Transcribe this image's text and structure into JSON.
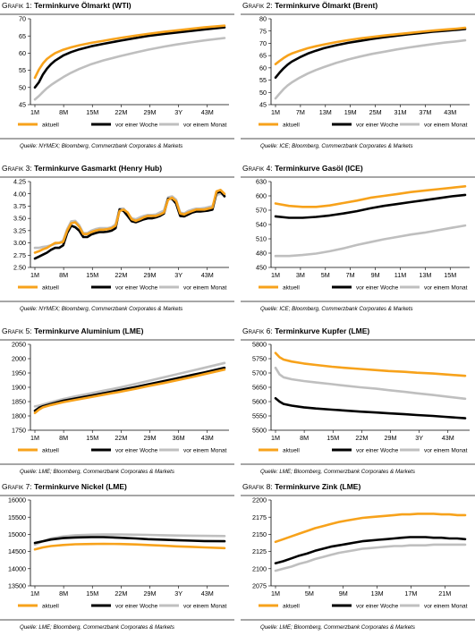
{
  "chart_data": [
    {
      "type": "line",
      "prefix": "Grafik 1:",
      "title": "Terminkurve Ölmarkt (WTI)",
      "ylim": [
        45,
        70
      ],
      "yticks": [
        45,
        50,
        55,
        60,
        65,
        70
      ],
      "xlabels": [
        "1M",
        "8M",
        "15M",
        "22M",
        "29M",
        "3Y",
        "43M"
      ],
      "source": "Quelle: NYMEX; Bloomberg, Commerzbank Corporates & Markets",
      "legend": [
        "aktuell",
        "vor einer Woche",
        "vor einem Monat"
      ],
      "x": [
        1,
        2,
        3,
        4,
        5,
        6,
        8,
        10,
        12,
        15,
        18,
        22,
        26,
        29,
        33,
        36,
        40,
        43,
        48
      ],
      "series": [
        {
          "name": "aktuell",
          "color": "#f7a21b",
          "values": [
            52.8,
            55.2,
            57.0,
            58.3,
            59.2,
            60.0,
            61.0,
            61.7,
            62.3,
            63.0,
            63.6,
            64.4,
            65.1,
            65.6,
            66.2,
            66.6,
            67.1,
            67.5,
            68.0
          ]
        },
        {
          "name": "vor einer Woche",
          "color": "#000000",
          "values": [
            50.0,
            51.5,
            53.8,
            55.5,
            56.8,
            57.8,
            59.3,
            60.3,
            61.1,
            62.0,
            62.7,
            63.6,
            64.4,
            65.0,
            65.6,
            66.0,
            66.5,
            66.9,
            67.5
          ]
        },
        {
          "name": "vor einem Monat",
          "color": "#bfbfbf",
          "values": [
            46.5,
            47.5,
            48.7,
            49.8,
            50.7,
            51.5,
            53.0,
            54.3,
            55.4,
            56.8,
            57.9,
            59.1,
            60.2,
            61.0,
            61.9,
            62.5,
            63.2,
            63.7,
            64.4
          ]
        }
      ]
    },
    {
      "type": "line",
      "prefix": "Grafik 2:",
      "title": "Terminkurve Ölmarkt (Brent)",
      "ylim": [
        45,
        80
      ],
      "yticks": [
        45,
        50,
        55,
        60,
        65,
        70,
        75,
        80
      ],
      "xlabels": [
        "1M",
        "7M",
        "13M",
        "19M",
        "25M",
        "31M",
        "37M",
        "43M"
      ],
      "source": "Quelle: ICE; Bloomberg, Commerzbank Corporates & Markets",
      "legend": [
        "aktuell",
        "vor einer Woche",
        "vor einem Monat"
      ],
      "x": [
        1,
        2,
        3,
        4,
        5,
        7,
        9,
        11,
        13,
        16,
        19,
        22,
        25,
        28,
        31,
        34,
        37,
        40,
        43,
        46,
        48
      ],
      "series": [
        {
          "name": "aktuell",
          "color": "#f7a21b",
          "values": [
            61.5,
            62.8,
            64.0,
            65.0,
            65.8,
            67.0,
            68.0,
            68.8,
            69.5,
            70.5,
            71.3,
            72.0,
            72.6,
            73.2,
            73.7,
            74.2,
            74.7,
            75.2,
            75.6,
            76.0,
            76.3
          ]
        },
        {
          "name": "vor einer Woche",
          "color": "#000000",
          "values": [
            56.0,
            58.0,
            59.8,
            61.3,
            62.5,
            64.3,
            65.8,
            67.0,
            68.0,
            69.2,
            70.2,
            71.0,
            71.8,
            72.5,
            73.1,
            73.7,
            74.2,
            74.7,
            75.1,
            75.5,
            75.8
          ]
        },
        {
          "name": "vor einem Monat",
          "color": "#bfbfbf",
          "values": [
            47.5,
            49.5,
            51.3,
            52.8,
            54.0,
            56.0,
            57.7,
            59.1,
            60.3,
            62.0,
            63.4,
            64.6,
            65.7,
            66.6,
            67.5,
            68.3,
            69.0,
            69.7,
            70.3,
            70.8,
            71.2
          ]
        }
      ]
    },
    {
      "type": "line",
      "prefix": "Grafik 3:",
      "title": "Terminkurve Gasmarkt (Henry Hub)",
      "ylim": [
        2.5,
        4.25
      ],
      "yticks": [
        2.5,
        2.75,
        3.0,
        3.25,
        3.5,
        3.75,
        4.0,
        4.25
      ],
      "xlabels": [
        "1M",
        "8M",
        "15M",
        "22M",
        "29M",
        "3Y",
        "43M"
      ],
      "source": "Quelle: NYMEX; Bloomberg, Commerzbank Corporates & Markets",
      "legend": [
        "aktuell",
        "vor einer Woche",
        "vor einem Monat"
      ],
      "x": [
        1,
        2,
        3,
        4,
        5,
        6,
        7,
        8,
        9,
        10,
        11,
        12,
        13,
        14,
        15,
        16,
        17,
        18,
        19,
        20,
        21,
        22,
        23,
        24,
        25,
        26,
        27,
        28,
        29,
        30,
        31,
        32,
        33,
        34,
        35,
        36,
        37,
        38,
        39,
        40,
        41,
        42,
        43,
        44,
        45,
        46,
        47,
        48
      ],
      "series": [
        {
          "name": "aktuell",
          "color": "#f7a21b",
          "values": [
            2.8,
            2.83,
            2.87,
            2.9,
            2.95,
            3.0,
            3.0,
            3.02,
            3.25,
            3.4,
            3.42,
            3.33,
            3.18,
            3.18,
            3.22,
            3.25,
            3.27,
            3.27,
            3.28,
            3.3,
            3.35,
            3.65,
            3.68,
            3.62,
            3.48,
            3.45,
            3.48,
            3.52,
            3.55,
            3.55,
            3.55,
            3.58,
            3.62,
            3.88,
            3.92,
            3.85,
            3.6,
            3.58,
            3.62,
            3.65,
            3.68,
            3.68,
            3.68,
            3.7,
            3.72,
            4.05,
            4.08,
            4.0
          ]
        },
        {
          "name": "vor einer Woche",
          "color": "#000000",
          "values": [
            2.68,
            2.72,
            2.76,
            2.8,
            2.86,
            2.9,
            2.9,
            2.95,
            3.2,
            3.35,
            3.32,
            3.25,
            3.12,
            3.12,
            3.17,
            3.2,
            3.22,
            3.22,
            3.23,
            3.25,
            3.3,
            3.68,
            3.65,
            3.55,
            3.44,
            3.42,
            3.45,
            3.48,
            3.5,
            3.5,
            3.52,
            3.55,
            3.6,
            3.9,
            3.9,
            3.8,
            3.55,
            3.54,
            3.58,
            3.62,
            3.64,
            3.64,
            3.65,
            3.66,
            3.68,
            4.02,
            4.05,
            3.95
          ]
        },
        {
          "name": "vor einem Monat",
          "color": "#bfbfbf",
          "values": [
            2.9,
            2.9,
            2.92,
            2.93,
            2.95,
            2.98,
            3.0,
            3.05,
            3.28,
            3.44,
            3.45,
            3.36,
            3.2,
            3.2,
            3.25,
            3.28,
            3.3,
            3.3,
            3.3,
            3.32,
            3.38,
            3.7,
            3.7,
            3.6,
            3.5,
            3.48,
            3.52,
            3.55,
            3.57,
            3.57,
            3.58,
            3.62,
            3.66,
            3.93,
            3.95,
            3.88,
            3.62,
            3.6,
            3.65,
            3.68,
            3.7,
            3.7,
            3.71,
            3.73,
            3.75,
            3.98,
            4.0,
            3.98
          ]
        }
      ]
    },
    {
      "type": "line",
      "prefix": "Grafik 4:",
      "title": "Terminkurve Gasöl (ICE)",
      "ylim": [
        450,
        630
      ],
      "yticks": [
        450,
        480,
        510,
        540,
        570,
        600,
        630
      ],
      "xlabels": [
        "1M",
        "3M",
        "5M",
        "7M",
        "9M",
        "11M",
        "13M",
        "15M"
      ],
      "source": "Quelle: ICE; Bloomberg, Commerzbank Corporates & Markets",
      "legend": [
        "aktuell",
        "vor einer Woche",
        "vor einem Monat"
      ],
      "x": [
        1,
        2,
        3,
        4,
        5,
        6,
        7,
        8,
        9,
        10,
        11,
        12,
        13,
        14,
        15
      ],
      "series": [
        {
          "name": "aktuell",
          "color": "#f7a21b",
          "values": [
            584,
            579,
            577,
            577,
            580,
            585,
            590,
            596,
            600,
            604,
            608,
            611,
            614,
            617,
            620
          ]
        },
        {
          "name": "vor einer Woche",
          "color": "#000000",
          "values": [
            557,
            554,
            554,
            556,
            559,
            563,
            568,
            574,
            579,
            583,
            587,
            591,
            595,
            599,
            602
          ]
        },
        {
          "name": "vor einem Monat",
          "color": "#bfbfbf",
          "values": [
            474,
            474,
            476,
            479,
            484,
            490,
            497,
            503,
            509,
            514,
            519,
            523,
            528,
            533,
            538
          ]
        }
      ]
    },
    {
      "type": "line",
      "prefix": "Grafik 5:",
      "title": "Terminkurve Aluminium (LME)",
      "ylim": [
        1750,
        2050
      ],
      "yticks": [
        1750,
        1800,
        1850,
        1900,
        1950,
        2000,
        2050
      ],
      "xlabels": [
        "1M",
        "8M",
        "15M",
        "22M",
        "29M",
        "36M",
        "43M"
      ],
      "source": "Quelle: LME; Bloomberg, Commerzbank Corporates & Markets",
      "legend": [
        "aktuell",
        "vor einer Woche",
        "vor einem Monat"
      ],
      "x": [
        1,
        2,
        3,
        5,
        8,
        11,
        15,
        18,
        22,
        26,
        29,
        33,
        36,
        40,
        43,
        48
      ],
      "series": [
        {
          "name": "aktuell",
          "color": "#f7a21b",
          "values": [
            1810,
            1822,
            1830,
            1838,
            1848,
            1856,
            1866,
            1874,
            1884,
            1895,
            1904,
            1915,
            1924,
            1936,
            1946,
            1962
          ]
        },
        {
          "name": "vor einer Woche",
          "color": "#000000",
          "values": [
            1818,
            1828,
            1834,
            1842,
            1853,
            1861,
            1871,
            1879,
            1890,
            1901,
            1910,
            1922,
            1931,
            1943,
            1952,
            1968
          ]
        },
        {
          "name": "vor einem Monat",
          "color": "#bfbfbf",
          "values": [
            1833,
            1836,
            1840,
            1848,
            1859,
            1868,
            1879,
            1888,
            1899,
            1912,
            1922,
            1935,
            1945,
            1958,
            1968,
            1985
          ]
        }
      ]
    },
    {
      "type": "line",
      "prefix": "Grafik 6:",
      "title": "Terminkurve Kupfer (LME)",
      "ylim": [
        5500,
        5800
      ],
      "yticks": [
        5500,
        5550,
        5600,
        5650,
        5700,
        5750,
        5800
      ],
      "xlabels": [
        "1M",
        "8M",
        "15M",
        "22M",
        "29M",
        "3Y",
        "43M"
      ],
      "source": "Quelle: LME; Bloomberg, Commerzbank Corporates & Markets",
      "legend": [
        "aktuell",
        "vor einer Woche",
        "vor einem Monat"
      ],
      "x": [
        1,
        2,
        3,
        5,
        8,
        11,
        15,
        18,
        22,
        26,
        29,
        33,
        36,
        40,
        43,
        48
      ],
      "series": [
        {
          "name": "aktuell",
          "color": "#f7a21b",
          "values": [
            5770,
            5755,
            5747,
            5740,
            5733,
            5728,
            5722,
            5718,
            5714,
            5710,
            5707,
            5704,
            5701,
            5698,
            5695,
            5690
          ]
        },
        {
          "name": "vor einer Woche",
          "color": "#000000",
          "values": [
            5612,
            5600,
            5592,
            5586,
            5580,
            5576,
            5572,
            5569,
            5565,
            5562,
            5559,
            5556,
            5553,
            5550,
            5547,
            5542
          ]
        },
        {
          "name": "vor einem Monat",
          "color": "#bfbfbf",
          "values": [
            5718,
            5695,
            5685,
            5678,
            5672,
            5667,
            5661,
            5656,
            5650,
            5645,
            5640,
            5634,
            5629,
            5623,
            5618,
            5610
          ]
        }
      ]
    },
    {
      "type": "line",
      "prefix": "Grafik 7:",
      "title": "Terminkurve Nickel (LME)",
      "ylim": [
        13500,
        16000
      ],
      "yticks": [
        13500,
        14000,
        14500,
        15000,
        15500,
        16000
      ],
      "xlabels": [
        "1M",
        "8M",
        "15M",
        "22M",
        "29M",
        "3Y",
        "43M"
      ],
      "source": "Quelle: LME; Bloomberg, Commerzbank Corporates & Markets",
      "legend": [
        "aktuell",
        "vor einer Woche",
        "vor einem Monat"
      ],
      "x": [
        1,
        3,
        5,
        8,
        11,
        15,
        18,
        22,
        26,
        29,
        33,
        36,
        40,
        43,
        48
      ],
      "series": [
        {
          "name": "aktuell",
          "color": "#f7a21b",
          "values": [
            14560,
            14620,
            14660,
            14690,
            14710,
            14720,
            14725,
            14720,
            14705,
            14690,
            14670,
            14650,
            14635,
            14620,
            14600
          ]
        },
        {
          "name": "vor einer Woche",
          "color": "#000000",
          "values": [
            14750,
            14800,
            14850,
            14890,
            14910,
            14920,
            14920,
            14900,
            14880,
            14860,
            14845,
            14830,
            14815,
            14805,
            14800
          ]
        },
        {
          "name": "vor einem Monat",
          "color": "#bfbfbf",
          "values": [
            14700,
            14800,
            14880,
            14940,
            14975,
            14990,
            14995,
            14995,
            14990,
            14985,
            14975,
            14965,
            14960,
            14955,
            14950
          ]
        }
      ]
    },
    {
      "type": "line",
      "prefix": "Grafik 8:",
      "title": "Terminkurve Zink (LME)",
      "ylim": [
        2075,
        2200
      ],
      "yticks": [
        2075,
        2100,
        2125,
        2150,
        2175,
        2200
      ],
      "xlabels": [
        "1M",
        "5M",
        "9M",
        "13M",
        "17M",
        "21M"
      ],
      "source": "Quelle: LME; Bloomberg, Commerzbank Corporates & Markets",
      "legend": [
        "aktuell",
        "vor einer Woche",
        "vor einem Monat"
      ],
      "x": [
        1,
        2,
        3,
        4,
        5,
        6,
        7,
        8,
        9,
        10,
        11,
        12,
        13,
        14,
        15,
        16,
        17,
        18,
        19,
        20,
        21,
        22,
        23,
        24,
        25
      ],
      "series": [
        {
          "name": "aktuell",
          "color": "#f7a21b",
          "values": [
            2139,
            2143,
            2147,
            2151,
            2155,
            2159,
            2162,
            2165,
            2168,
            2170,
            2172,
            2174,
            2175,
            2176,
            2177,
            2178,
            2179,
            2179,
            2180,
            2180,
            2180,
            2179,
            2179,
            2178,
            2178
          ]
        },
        {
          "name": "vor einer Woche",
          "color": "#000000",
          "values": [
            2108,
            2111,
            2115,
            2119,
            2122,
            2126,
            2129,
            2132,
            2134,
            2136,
            2138,
            2140,
            2141,
            2142,
            2143,
            2144,
            2145,
            2146,
            2146,
            2146,
            2145,
            2145,
            2144,
            2144,
            2143
          ]
        },
        {
          "name": "vor einem Monat",
          "color": "#bfbfbf",
          "values": [
            2097,
            2100,
            2103,
            2107,
            2110,
            2114,
            2117,
            2120,
            2123,
            2125,
            2127,
            2129,
            2130,
            2131,
            2132,
            2133,
            2133,
            2134,
            2134,
            2134,
            2135,
            2135,
            2135,
            2135,
            2135
          ]
        }
      ]
    }
  ]
}
